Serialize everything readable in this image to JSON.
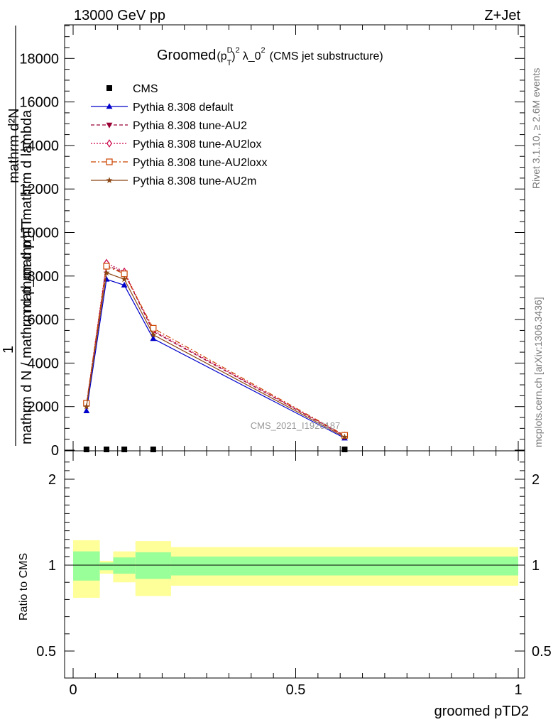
{
  "header": {
    "energy_label": "13000 GeV pp",
    "process_label": "Z+Jet",
    "title_main": "Groomed",
    "title_p": "(p",
    "title_sup_d": "D",
    "title_sub_t": "T",
    "title_close": ")",
    "title_sup_2": "2",
    "title_lambda": "λ_0",
    "title_sup_lambda": "2",
    "title_tail": "(CMS jet substructure)"
  },
  "side": {
    "rivet_label": "Rivet 3.1.10, ≥ 2.6M events",
    "mcplots_label": "mcplots.cern.ch [arXiv:1306.3436]"
  },
  "watermark": "CMS_2021_I1920187",
  "ylabel_main": {
    "numerator_one": "1",
    "denominator": "mathrm d N / mathrm d p_mathrm T",
    "numerator_two": "mathrm d²N",
    "denominator_two": "mathrm d p_T mathrm d lambda"
  },
  "ylabel_ratio": "Ratio to CMS",
  "xlabel": "groomed pTD2",
  "chart_data": [
    {
      "type": "line",
      "panel": "main",
      "x_edges": [
        0,
        0.06,
        0.09,
        0.14,
        0.22,
        1.0
      ],
      "xlim": [
        0,
        1
      ],
      "ylim": [
        0,
        18000
      ],
      "yticks": [
        0,
        2000,
        4000,
        6000,
        8000,
        10000,
        12000,
        14000,
        16000,
        18000
      ],
      "ytick_labels": [
        "0",
        "2000",
        "4000",
        "6000",
        "8000",
        "10000",
        "12000",
        "14000",
        "16000",
        "18000"
      ],
      "xticks": [
        0,
        0.5,
        1
      ],
      "xtick_labels": [
        "0",
        "0.5",
        "1"
      ],
      "legend_position": "top-left",
      "series": [
        {
          "name": "CMS",
          "marker": "square",
          "color": "#000000",
          "style": "none",
          "x": [
            0.03,
            0.075,
            0.115,
            0.18,
            0.61
          ],
          "y": [
            0,
            0,
            0,
            0,
            0
          ]
        },
        {
          "name": "Pythia 8.308 default",
          "marker": "triangle-up",
          "color": "#0000cc",
          "style": "solid",
          "x": [
            0.03,
            0.075,
            0.115,
            0.18,
            0.61
          ],
          "y": [
            1800,
            7850,
            7580,
            5120,
            550
          ]
        },
        {
          "name": "Pythia 8.308 tune-AU2",
          "marker": "triangle-down",
          "color": "#990033",
          "style": "dashed",
          "x": [
            0.03,
            0.075,
            0.115,
            0.18,
            0.61
          ],
          "y": [
            2050,
            8500,
            8150,
            5450,
            650
          ]
        },
        {
          "name": "Pythia 8.308 tune-AU2lox",
          "marker": "diamond",
          "color": "#cc0044",
          "style": "dotted",
          "x": [
            0.03,
            0.075,
            0.115,
            0.18,
            0.61
          ],
          "y": [
            2100,
            8600,
            8200,
            5500,
            660
          ]
        },
        {
          "name": "Pythia 8.308 tune-AU2loxx",
          "marker": "square-open",
          "color": "#cc4400",
          "style": "dashdot",
          "x": [
            0.03,
            0.075,
            0.115,
            0.18,
            0.61
          ],
          "y": [
            2150,
            8450,
            8100,
            5600,
            680
          ]
        },
        {
          "name": "Pythia 8.308 tune-AU2m",
          "marker": "star",
          "color": "#8b4513",
          "style": "solid",
          "x": [
            0.03,
            0.075,
            0.115,
            0.18,
            0.61
          ],
          "y": [
            2000,
            8150,
            7850,
            5300,
            600
          ]
        }
      ]
    },
    {
      "type": "area",
      "panel": "ratio",
      "ylabel": "Ratio to CMS",
      "ylim": [
        0.4,
        2.3
      ],
      "yticks": [
        0.5,
        1,
        2
      ],
      "ytick_labels": [
        "0.5",
        "1",
        "2"
      ],
      "xlim": [
        0,
        1
      ],
      "bands": {
        "x_edges": [
          0,
          0.06,
          0.09,
          0.14,
          0.22,
          1.0
        ],
        "yellow_low": [
          0.81,
          0.95,
          0.9,
          0.82,
          0.88
        ],
        "yellow_high": [
          1.29,
          1.05,
          1.16,
          1.28,
          1.21
        ],
        "green_low": [
          0.91,
          0.97,
          0.95,
          0.92,
          0.94
        ],
        "green_high": [
          1.16,
          1.03,
          1.09,
          1.15,
          1.1
        ]
      },
      "colors": {
        "yellow": "#ffff99",
        "green": "#99ff99"
      }
    }
  ]
}
